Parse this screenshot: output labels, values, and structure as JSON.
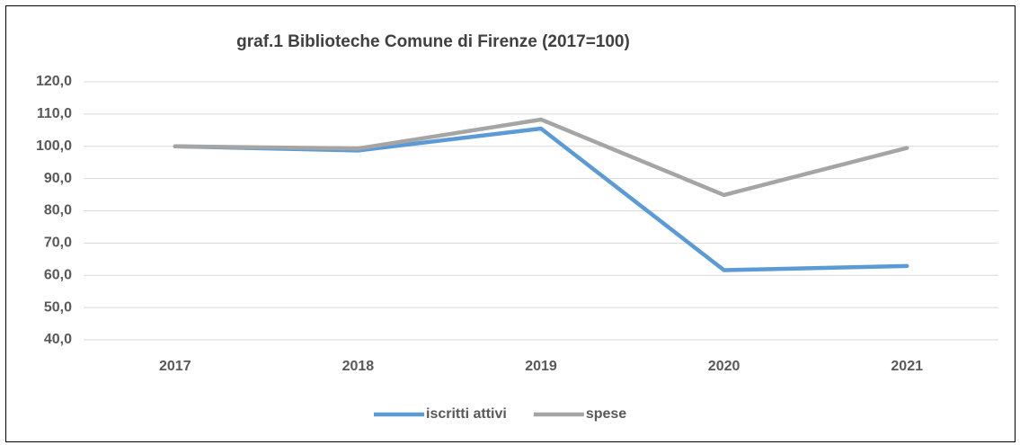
{
  "chart_data": {
    "type": "line",
    "title": "graf.1  Biblioteche Comune di Firenze (2017=100)",
    "categories": [
      "2017",
      "2018",
      "2019",
      "2020",
      "2021"
    ],
    "series": [
      {
        "name": "iscritti attivi",
        "color": "#5b9bd5",
        "values": [
          100,
          98.7,
          105.5,
          61.6,
          62.9
        ]
      },
      {
        "name": "spese",
        "color": "#a5a5a5",
        "values": [
          100,
          99.3,
          108.3,
          84.9,
          99.5
        ]
      }
    ],
    "ylim": [
      40,
      120
    ],
    "yticks": [
      {
        "value": 40,
        "label": "40,0"
      },
      {
        "value": 50,
        "label": "50,0"
      },
      {
        "value": 60,
        "label": "60,0"
      },
      {
        "value": 70,
        "label": "70,0"
      },
      {
        "value": 80,
        "label": "80,0"
      },
      {
        "value": 90,
        "label": "90,0"
      },
      {
        "value": 100,
        "label": "100,0"
      },
      {
        "value": 110,
        "label": "110,0"
      },
      {
        "value": 120,
        "label": "120,0"
      }
    ],
    "grid": true,
    "legend": "bottom"
  }
}
